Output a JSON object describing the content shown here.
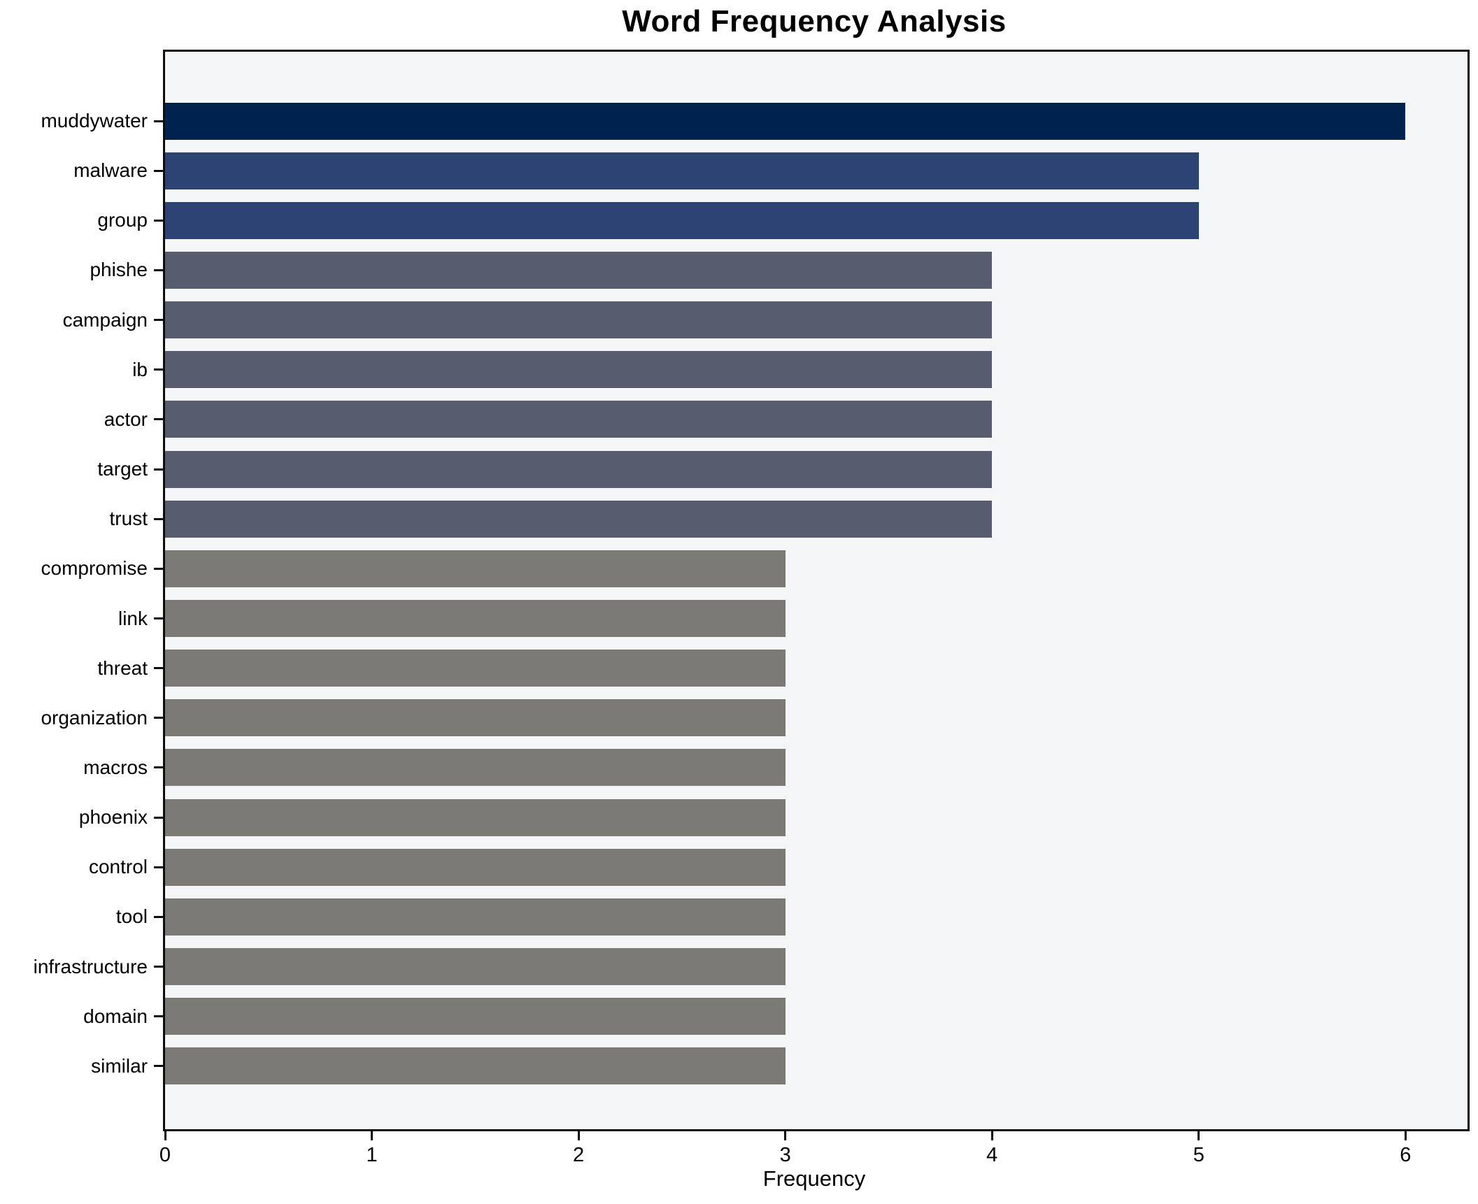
{
  "title": "Word Frequency Analysis",
  "chart_data": {
    "type": "bar",
    "orientation": "horizontal",
    "title": "Word Frequency Analysis",
    "xlabel": "Frequency",
    "ylabel": "",
    "categories": [
      "muddywater",
      "malware",
      "group",
      "phishe",
      "campaign",
      "ib",
      "actor",
      "target",
      "trust",
      "compromise",
      "link",
      "threat",
      "organization",
      "macros",
      "phoenix",
      "control",
      "tool",
      "infrastructure",
      "domain",
      "similar"
    ],
    "values": [
      6,
      5,
      5,
      4,
      4,
      4,
      4,
      4,
      4,
      3,
      3,
      3,
      3,
      3,
      3,
      3,
      3,
      3,
      3,
      3
    ],
    "bar_colors": [
      "#00224e",
      "#2d4373",
      "#2d4373",
      "#575d6e",
      "#575d6e",
      "#575d6e",
      "#575d6e",
      "#575d6e",
      "#575d6e",
      "#7b7a74",
      "#7b7a74",
      "#7b7a74",
      "#7b7a74",
      "#7b7a74",
      "#7b7a74",
      "#7b7a74",
      "#7b7a74",
      "#7b7a74",
      "#7b7a74",
      "#7b7a74"
    ],
    "color_by_value": {
      "6": "#00224e",
      "5": "#2d4373",
      "4": "#575d6e",
      "3": "#7b7a74"
    },
    "xticks": [
      "0",
      "1",
      "2",
      "3",
      "4",
      "5",
      "6"
    ],
    "xlim": [
      0,
      6.3
    ],
    "grid": false,
    "legend": null,
    "plot_background": "#f5f6f7",
    "figure_background": "#ffffff",
    "spine_color": "#0e0e0e"
  }
}
